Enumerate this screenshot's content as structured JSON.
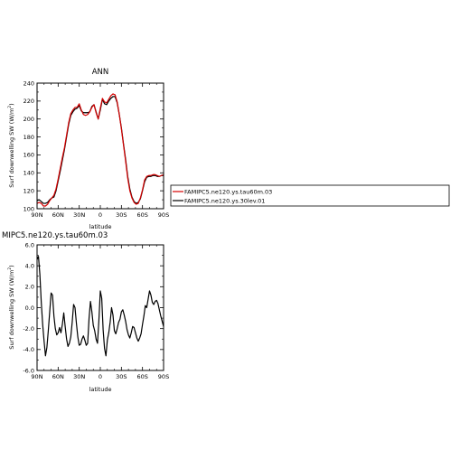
{
  "chart_data": [
    {
      "type": "line",
      "title": "ANN",
      "xlabel": "latitude",
      "ylabel": "Surf downwelling SW (W/m",
      "ylabel_sup": "2",
      "ylabel_end": ")",
      "xlim": [
        90,
        -90
      ],
      "ylim": [
        100,
        240
      ],
      "xticks": [
        90,
        60,
        30,
        0,
        -30,
        -60,
        -90
      ],
      "xtick_labels": [
        "90N",
        "60N",
        "30N",
        "0",
        "30S",
        "60S",
        "90S"
      ],
      "yticks": [
        100,
        120,
        140,
        160,
        180,
        200,
        220,
        240
      ],
      "ytick_labels": [
        "100",
        "120",
        "140",
        "160",
        "180",
        "200",
        "220",
        "240"
      ],
      "legend_position": "right",
      "series": [
        {
          "name": "FAMIPC5.ne120.ys.tau60m.03",
          "color": "#d40000",
          "x": [
            90,
            87,
            84,
            81,
            78,
            75,
            72,
            69,
            66,
            63,
            60,
            57,
            54,
            51,
            48,
            45,
            42,
            39,
            36,
            33,
            30,
            27,
            24,
            21,
            18,
            15,
            12,
            9,
            6,
            3,
            0,
            -3,
            -6,
            -9,
            -12,
            -15,
            -18,
            -21,
            -24,
            -27,
            -30,
            -33,
            -36,
            -39,
            -42,
            -45,
            -48,
            -51,
            -54,
            -57,
            -60,
            -63,
            -66,
            -69,
            -72,
            -75,
            -78,
            -81,
            -84,
            -87,
            -90
          ],
          "y": [
            106,
            107,
            106,
            103,
            103,
            105,
            109,
            112,
            115,
            122,
            133,
            145,
            157,
            168,
            182,
            196,
            206,
            210,
            213,
            213,
            217,
            210,
            205,
            204,
            205,
            208,
            213,
            216,
            207,
            200,
            212,
            223,
            219,
            218,
            222,
            226,
            228,
            227,
            219,
            205,
            189,
            171,
            153,
            134,
            120,
            112,
            107,
            105,
            106,
            112,
            121,
            132,
            136,
            137,
            137,
            138,
            138,
            137,
            136,
            137,
            138
          ]
        },
        {
          "name": "FAMIPC5.ne120.ys.30lev.01",
          "color": "#000000",
          "x": [
            90,
            87,
            84,
            81,
            78,
            75,
            72,
            69,
            66,
            63,
            60,
            57,
            54,
            51,
            48,
            45,
            42,
            39,
            36,
            33,
            30,
            27,
            24,
            21,
            18,
            15,
            12,
            9,
            6,
            3,
            0,
            -3,
            -6,
            -9,
            -12,
            -15,
            -18,
            -21,
            -24,
            -27,
            -30,
            -33,
            -36,
            -39,
            -42,
            -45,
            -48,
            -51,
            -54,
            -57,
            -60,
            -63,
            -66,
            -69,
            -72,
            -75,
            -78,
            -81,
            -84,
            -87,
            -90
          ],
          "y": [
            109,
            110,
            108,
            106,
            106,
            107,
            110,
            112,
            113,
            120,
            131,
            142,
            154,
            166,
            180,
            194,
            204,
            208,
            211,
            212,
            215,
            209,
            207,
            207,
            207,
            208,
            214,
            216,
            208,
            200,
            210,
            222,
            217,
            216,
            220,
            223,
            225,
            225,
            218,
            205,
            190,
            172,
            155,
            136,
            122,
            113,
            108,
            106,
            107,
            111,
            120,
            130,
            135,
            136,
            136,
            137,
            137,
            136,
            136,
            137,
            137
          ]
        }
      ]
    },
    {
      "type": "line",
      "title": "MIPC5.ne120.ys.tau60m.03",
      "xlabel": "latitude",
      "ylabel": "Surf downwelling SW (W/m",
      "ylabel_sup": "2",
      "ylabel_end": ")",
      "xlim": [
        90,
        -90
      ],
      "ylim": [
        -6,
        6
      ],
      "xticks": [
        90,
        60,
        30,
        0,
        -30,
        -60,
        -90
      ],
      "xtick_labels": [
        "90N",
        "60N",
        "30N",
        "0",
        "30S",
        "60S",
        "90S"
      ],
      "yticks": [
        -6,
        -4,
        -2,
        0,
        2,
        4,
        6
      ],
      "ytick_labels": [
        "-6.0",
        "-4.0",
        "-2.0",
        "0.0",
        "2.0",
        "4.0",
        "6.0"
      ],
      "series": [
        {
          "color": "#000000",
          "x": [
            90,
            88,
            86,
            84,
            82,
            80,
            78,
            76,
            74,
            72,
            70,
            68,
            66,
            64,
            62,
            60,
            58,
            56,
            54,
            52,
            50,
            48,
            46,
            44,
            42,
            40,
            38,
            36,
            34,
            32,
            30,
            28,
            26,
            24,
            22,
            20,
            18,
            16,
            14,
            12,
            10,
            8,
            6,
            4,
            2,
            0,
            -2,
            -4,
            -6,
            -8,
            -10,
            -12,
            -14,
            -16,
            -18,
            -20,
            -22,
            -24,
            -26,
            -28,
            -30,
            -32,
            -34,
            -36,
            -38,
            -40,
            -42,
            -44,
            -46,
            -48,
            -50,
            -52,
            -54,
            -56,
            -58,
            -60,
            -62,
            -64,
            -66,
            -68,
            -70,
            -72,
            -74,
            -76,
            -78,
            -80,
            -82,
            -84,
            -86,
            -88,
            -90
          ],
          "y": [
            4.6,
            4.9,
            3.2,
            0.5,
            -1.6,
            -3.2,
            -4.6,
            -3.8,
            -2.2,
            -0.4,
            1.4,
            1.2,
            -0.8,
            -2.0,
            -2.6,
            -2.4,
            -1.9,
            -2.4,
            -1.6,
            -0.5,
            -1.8,
            -3.0,
            -3.7,
            -3.4,
            -2.8,
            -1.4,
            0.3,
            0.0,
            -1.5,
            -2.8,
            -3.6,
            -3.5,
            -3.0,
            -2.7,
            -3.1,
            -3.6,
            -3.4,
            -1.0,
            0.6,
            -0.4,
            -1.7,
            -2.2,
            -3.0,
            -3.4,
            -1.2,
            1.6,
            0.9,
            -2.1,
            -3.9,
            -4.6,
            -3.1,
            -2.4,
            -1.4,
            0.0,
            -0.7,
            -2.2,
            -2.5,
            -2.0,
            -1.4,
            -1.1,
            -0.4,
            -0.2,
            -0.7,
            -1.3,
            -2.1,
            -2.6,
            -2.9,
            -2.4,
            -1.8,
            -1.9,
            -2.4,
            -2.9,
            -3.2,
            -2.9,
            -2.5,
            -1.6,
            -0.8,
            0.2,
            0.0,
            0.8,
            1.6,
            1.2,
            0.5,
            0.3,
            0.6,
            0.7,
            0.4,
            -0.2,
            -0.8,
            -1.3,
            -1.8
          ]
        }
      ]
    }
  ]
}
